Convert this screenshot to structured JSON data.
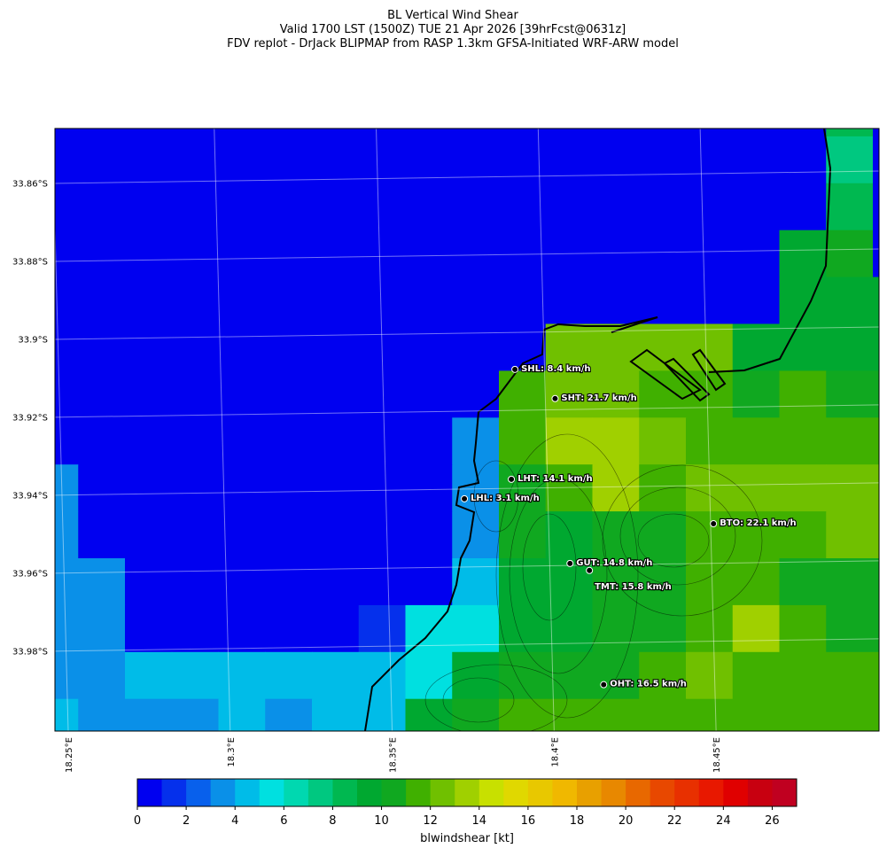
{
  "chart_data": {
    "type": "map",
    "title_lines": [
      "BL Vertical Wind Shear",
      "Valid 1700 LST (1500Z) TUE 21 Apr 2026 [39hrFcst@0631z]",
      "FDV replot - DrJack BLIPMAP from RASP 1.3km GFSA-Initiated WRF-ARW model"
    ],
    "xlim": [
      18.2459,
      18.5003
    ],
    "ylim": [
      -34.0005,
      -33.8459
    ],
    "xticks": [
      {
        "value": 18.25,
        "label": "18.25°E"
      },
      {
        "value": 18.3,
        "label": "18.3°E"
      },
      {
        "value": 18.35,
        "label": "18.35°E"
      },
      {
        "value": 18.4,
        "label": "18.4°E"
      },
      {
        "value": 18.45,
        "label": "18.45°E"
      }
    ],
    "yticks": [
      {
        "value": -33.86,
        "label": "33.86°S"
      },
      {
        "value": -33.88,
        "label": "33.88°S"
      },
      {
        "value": -33.9,
        "label": "33.9°S"
      },
      {
        "value": -33.92,
        "label": "33.92°S"
      },
      {
        "value": -33.94,
        "label": "33.94°S"
      },
      {
        "value": -33.96,
        "label": "33.96°S"
      },
      {
        "value": -33.98,
        "label": "33.98°S"
      }
    ],
    "grid": true,
    "field": [
      [
        0,
        0,
        0,
        0,
        0,
        0,
        0,
        0,
        0,
        0,
        0,
        0,
        0,
        0,
        0,
        0,
        0,
        8,
        0
      ],
      [
        0,
        0,
        0,
        0,
        0,
        0,
        0,
        0,
        0,
        0,
        0,
        0,
        0,
        0,
        0,
        0,
        0,
        7,
        0
      ],
      [
        0,
        0,
        0,
        0,
        0,
        0,
        0,
        0,
        0,
        0,
        0,
        0,
        0,
        0,
        0,
        0,
        0,
        8,
        0
      ],
      [
        0,
        0,
        0,
        0,
        0,
        0,
        0,
        0,
        0,
        0,
        0,
        0,
        0,
        0,
        0,
        0,
        9,
        10,
        0
      ],
      [
        0,
        0,
        0,
        0,
        0,
        0,
        0,
        0,
        0,
        0,
        0,
        0,
        0,
        0,
        0,
        0,
        9,
        9,
        9
      ],
      [
        0,
        0,
        0,
        0,
        0,
        0,
        0,
        0,
        0,
        0,
        0,
        12,
        12,
        12,
        12,
        9,
        9,
        9,
        9
      ],
      [
        0,
        0,
        0,
        0,
        0,
        0,
        0,
        0,
        0,
        0,
        11,
        12,
        12,
        11,
        11,
        10,
        11,
        10,
        10
      ],
      [
        0,
        0,
        0,
        0,
        0,
        0,
        0,
        0,
        0,
        3,
        11,
        13,
        13,
        12,
        11,
        11,
        11,
        11,
        11
      ],
      [
        3,
        0,
        0,
        0,
        0,
        0,
        0,
        0,
        0,
        3,
        10,
        11,
        13,
        11,
        12,
        12,
        12,
        12,
        12
      ],
      [
        3,
        0,
        0,
        0,
        0,
        0,
        0,
        0,
        0,
        3,
        10,
        9,
        10,
        10,
        11,
        11,
        11,
        12,
        12
      ],
      [
        3,
        3,
        0,
        0,
        0,
        0,
        0,
        0,
        0,
        4,
        9,
        9,
        10,
        10,
        11,
        11,
        10,
        10,
        10
      ],
      [
        3,
        3,
        0,
        0,
        0,
        0,
        0,
        1,
        5,
        5,
        9,
        9,
        10,
        10,
        11,
        13,
        11,
        10,
        10
      ],
      [
        3,
        3,
        4,
        4,
        4,
        4,
        4,
        4,
        5,
        9,
        10,
        10,
        10,
        11,
        12,
        11,
        11,
        11,
        11
      ],
      [
        4,
        3,
        3,
        3,
        4,
        3,
        4,
        4,
        9,
        10,
        11,
        11,
        11,
        11,
        11,
        11,
        11,
        11,
        11
      ]
    ],
    "stations": [
      {
        "label": "SHL: 8.4 km/h",
        "lon": 18.3879,
        "lat": -33.9077
      },
      {
        "label": "SHT: 21.7 km/h",
        "lon": 18.4003,
        "lat": -33.9152
      },
      {
        "label": "LHT: 14.1 km/h",
        "lon": 18.3868,
        "lat": -33.9359
      },
      {
        "label": "LHL: 3.1 km/h",
        "lon": 18.3723,
        "lat": -33.9409
      },
      {
        "label": "BTO: 22.1 km/h",
        "lon": 18.4492,
        "lat": -33.9473
      },
      {
        "label": "GUT: 14.8 km/h",
        "lon": 18.4049,
        "lat": -33.9575
      },
      {
        "label": "TMT: 15.8 km/h",
        "lon": 18.4109,
        "lat": -33.9593
      },
      {
        "label": "OHT: 16.5 km/h",
        "lon": 18.4153,
        "lat": -33.9886
      }
    ],
    "colorbar": {
      "label": "blwindshear [kt]",
      "lim": [
        0,
        27
      ],
      "ticks": [
        0,
        2,
        4,
        6,
        8,
        10,
        12,
        14,
        16,
        18,
        20,
        22,
        24,
        26
      ],
      "colors": [
        "#0000f0",
        "#0530ec",
        "#0860ec",
        "#0a90e8",
        "#00bce8",
        "#00e0e0",
        "#00d8b0",
        "#00c880",
        "#00b850",
        "#00a830",
        "#10a820",
        "#40b000",
        "#70c000",
        "#a0d000",
        "#c8e000",
        "#e0d800",
        "#e8c800",
        "#f0b800",
        "#e8a000",
        "#e88800",
        "#e86800",
        "#e84800",
        "#e83000",
        "#e81800",
        "#e00000",
        "#c80010",
        "#c00020"
      ]
    }
  }
}
